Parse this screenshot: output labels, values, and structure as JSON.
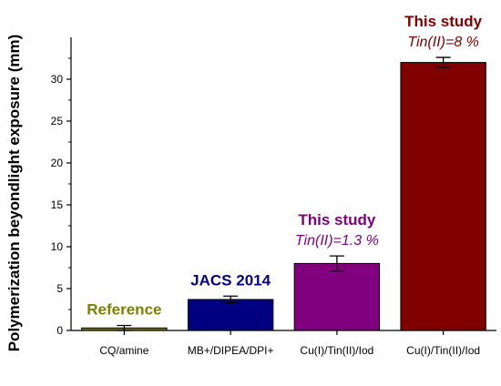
{
  "chart_data": {
    "type": "bar",
    "ylabel": "Polymerization beyondlight exposure (mm)",
    "xlabel": "",
    "ylim": [
      0,
      35
    ],
    "yticks": [
      0,
      5,
      10,
      15,
      20,
      25,
      30
    ],
    "grid": false,
    "categories": [
      "CQ/amine",
      "MB+/DIPEA/DPI+",
      "Cu(I)/Tin(II)/Iod",
      "Cu(I)/Tin(II)/Iod"
    ],
    "values": [
      0.3,
      3.7,
      8.0,
      32.0
    ],
    "errors": [
      0.3,
      0.4,
      0.9,
      0.6
    ],
    "bar_colors": [
      "#808000",
      "#000080",
      "#800080",
      "#800000"
    ],
    "annotations": [
      {
        "bar": 0,
        "lines": [
          "Reference"
        ],
        "color": "#808000"
      },
      {
        "bar": 1,
        "lines": [
          "JACS 2014"
        ],
        "color": "#000080"
      },
      {
        "bar": 2,
        "lines": [
          "This study",
          "Tin(II)=1.3 %"
        ],
        "color": "#800080"
      },
      {
        "bar": 3,
        "lines": [
          "This study",
          "Tin(II)=8 %"
        ],
        "color": "#800000"
      }
    ]
  }
}
